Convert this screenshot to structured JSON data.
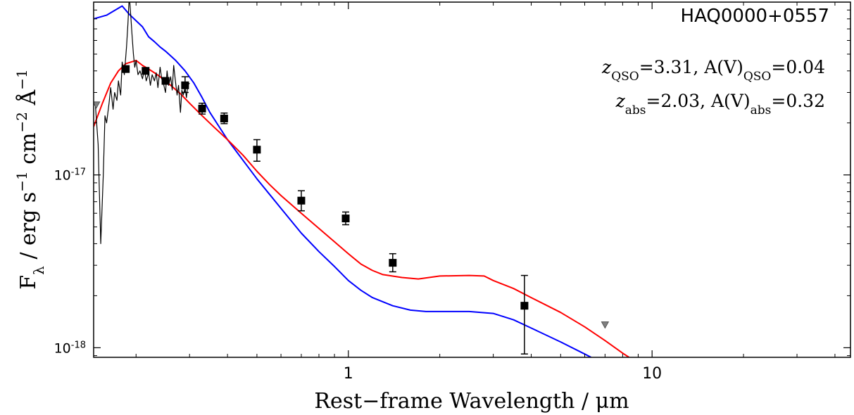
{
  "chart_data": {
    "type": "scatter",
    "title": "HAQ0000+0557",
    "xlabel": "Rest−frame Wavelength / μm",
    "ylabel_parts": {
      "main": "F",
      "sub": "λ",
      "rest": " / erg s",
      "e1": "−1",
      "cm": " cm",
      "e2": "−2",
      "ang": " Å",
      "e3": "−1"
    },
    "xscale": "log",
    "yscale": "log",
    "xlim": [
      0.145,
      45
    ],
    "ylim": [
      8.8e-19,
      1e-16
    ],
    "grid": false,
    "x_ticks": [
      {
        "value": 1,
        "label": "1"
      },
      {
        "value": 10,
        "label": "10"
      }
    ],
    "y_ticks": [
      {
        "value": 1e-17,
        "base": "10",
        "exp": "-17"
      },
      {
        "value": 1e-18,
        "base": "10",
        "exp": "-18"
      }
    ],
    "annotations": [
      {
        "sym": "z",
        "sub1": "QSO",
        "eq1": "=3.31, A(V)",
        "sub2": "QSO",
        "eq2": "=0.04"
      },
      {
        "sym": "z",
        "sub1": "abs",
        "eq1": "=2.03, A(V)",
        "sub2": "abs",
        "eq2": "=0.32"
      }
    ],
    "colors": {
      "intrinsic_model": "#0000ff",
      "reddened_model": "#ff0000",
      "spectrum": "#000000",
      "photometry": "#000000",
      "upper_limits": "#808080"
    },
    "series": [
      {
        "kind": "model",
        "color": "#0000ff",
        "x": [
          0.145,
          0.16,
          0.18,
          0.19,
          0.2,
          0.21,
          0.22,
          0.23,
          0.24,
          0.25,
          0.27,
          0.29,
          0.31,
          0.33,
          0.35,
          0.4,
          0.5,
          0.6,
          0.7,
          0.8,
          0.9,
          1.0,
          1.1,
          1.2,
          1.4,
          1.6,
          1.8,
          2.0,
          2.5,
          3.0,
          3.5,
          4.0,
          5.0,
          6.0,
          6.3
        ],
        "y": [
          8e-17,
          8.4e-17,
          9.5e-17,
          8.5e-17,
          7.8e-17,
          7.2e-17,
          6.3e-17,
          5.9e-17,
          5.5e-17,
          5.2e-17,
          4.6e-17,
          4e-17,
          3.4e-17,
          2.8e-17,
          2.3e-17,
          1.6e-17,
          9.5e-18,
          6.4e-18,
          4.6e-18,
          3.6e-18,
          2.95e-18,
          2.45e-18,
          2.15e-18,
          1.95e-18,
          1.75e-18,
          1.65e-18,
          1.62e-18,
          1.62e-18,
          1.62e-18,
          1.58e-18,
          1.45e-18,
          1.3e-18,
          1.08e-18,
          9.2e-19,
          8.8e-19
        ]
      },
      {
        "kind": "model",
        "color": "#ff0000",
        "x": [
          0.145,
          0.155,
          0.165,
          0.175,
          0.185,
          0.2,
          0.21,
          0.22,
          0.23,
          0.24,
          0.26,
          0.28,
          0.3,
          0.33,
          0.36,
          0.4,
          0.45,
          0.5,
          0.55,
          0.6,
          0.7,
          0.8,
          0.9,
          1.0,
          1.1,
          1.2,
          1.3,
          1.5,
          1.7,
          2.0,
          2.5,
          2.8,
          3.0,
          3.5,
          4.0,
          5.0,
          6.0,
          7.0,
          8.0,
          8.4
        ],
        "y": [
          1.9e-17,
          2.6e-17,
          3.4e-17,
          4e-17,
          4.4e-17,
          4.6e-17,
          4.3e-17,
          4.1e-17,
          3.9e-17,
          3.7e-17,
          3.3e-17,
          2.95e-17,
          2.6e-17,
          2.2e-17,
          1.9e-17,
          1.6e-17,
          1.3e-17,
          1.05e-17,
          8.8e-18,
          7.6e-18,
          6e-18,
          4.9e-18,
          4.1e-18,
          3.5e-18,
          3.05e-18,
          2.8e-18,
          2.65e-18,
          2.55e-18,
          2.5e-18,
          2.6e-18,
          2.62e-18,
          2.6e-18,
          2.45e-18,
          2.2e-18,
          1.95e-18,
          1.6e-18,
          1.32e-18,
          1.1e-18,
          9.3e-19,
          8.8e-19
        ]
      },
      {
        "kind": "spectrum",
        "color": "#000000",
        "x": [
          0.147,
          0.15,
          0.153,
          0.156,
          0.158,
          0.16,
          0.163,
          0.165,
          0.168,
          0.17,
          0.173,
          0.175,
          0.178,
          0.18,
          0.183,
          0.186,
          0.188,
          0.19,
          0.192,
          0.194,
          0.196,
          0.198,
          0.2,
          0.203,
          0.206,
          0.21,
          0.213,
          0.216,
          0.22,
          0.223,
          0.226,
          0.23,
          0.233,
          0.236,
          0.24,
          0.243,
          0.246,
          0.25,
          0.253,
          0.256,
          0.26,
          0.263,
          0.266,
          0.27,
          0.273,
          0.276,
          0.28,
          0.283,
          0.286,
          0.29,
          0.293,
          0.296,
          0.3
        ],
        "y": [
          2.5e-17,
          1.5e-17,
          4e-18,
          1e-17,
          2.2e-17,
          2e-17,
          2.6e-17,
          3.2e-17,
          2.4e-17,
          3e-17,
          2.7e-17,
          3.5e-17,
          2.9e-17,
          4.5e-17,
          3.8e-17,
          5.5e-17,
          7.5e-17,
          1.1e-16,
          8.5e-17,
          6.5e-17,
          5e-17,
          4.2e-17,
          4.6e-17,
          3.8e-17,
          4e-17,
          3.6e-17,
          4.1e-17,
          3.5e-17,
          3.9e-17,
          3.3e-17,
          3.8e-17,
          3.5e-17,
          3.9e-17,
          3.2e-17,
          4.2e-17,
          3.6e-17,
          3.4e-17,
          3e-17,
          4e-17,
          3.3e-17,
          3.7e-17,
          3.1e-17,
          4.3e-17,
          3.4e-17,
          2.9e-17,
          3.3e-17,
          2.3e-17,
          3.1e-17,
          2.9e-17,
          3.2e-17,
          2.8e-17,
          3.3e-17,
          3.4e-17
        ]
      },
      {
        "kind": "photometry",
        "color": "#000000",
        "points": [
          {
            "x": 0.185,
            "y": 4.1e-17,
            "ylo": 4.1e-17,
            "yhi": 4.1e-17
          },
          {
            "x": 0.215,
            "y": 4e-17,
            "ylo": 4e-17,
            "yhi": 4e-17
          },
          {
            "x": 0.25,
            "y": 3.5e-17,
            "ylo": 3.5e-17,
            "yhi": 3.5e-17
          },
          {
            "x": 0.29,
            "y": 3.3e-17,
            "ylo": 3e-17,
            "yhi": 3.7e-17
          },
          {
            "x": 0.33,
            "y": 2.42e-17,
            "ylo": 2.25e-17,
            "yhi": 2.6e-17
          },
          {
            "x": 0.39,
            "y": 2.12e-17,
            "ylo": 1.98e-17,
            "yhi": 2.28e-17
          },
          {
            "x": 0.5,
            "y": 1.4e-17,
            "ylo": 1.2e-17,
            "yhi": 1.6e-17
          },
          {
            "x": 0.7,
            "y": 7.1e-18,
            "ylo": 6.2e-18,
            "yhi": 8.1e-18
          },
          {
            "x": 0.98,
            "y": 5.6e-18,
            "ylo": 5.15e-18,
            "yhi": 6.1e-18
          },
          {
            "x": 1.4,
            "y": 3.1e-18,
            "ylo": 2.75e-18,
            "yhi": 3.5e-18
          },
          {
            "x": 3.8,
            "y": 1.75e-18,
            "ylo": 9.2e-19,
            "yhi": 2.62e-18
          }
        ]
      },
      {
        "kind": "upper_limit",
        "color": "#808080",
        "points": [
          {
            "x": 0.148,
            "y": 2.55e-17
          },
          {
            "x": 7.0,
            "y": 1.36e-18
          }
        ]
      }
    ]
  }
}
